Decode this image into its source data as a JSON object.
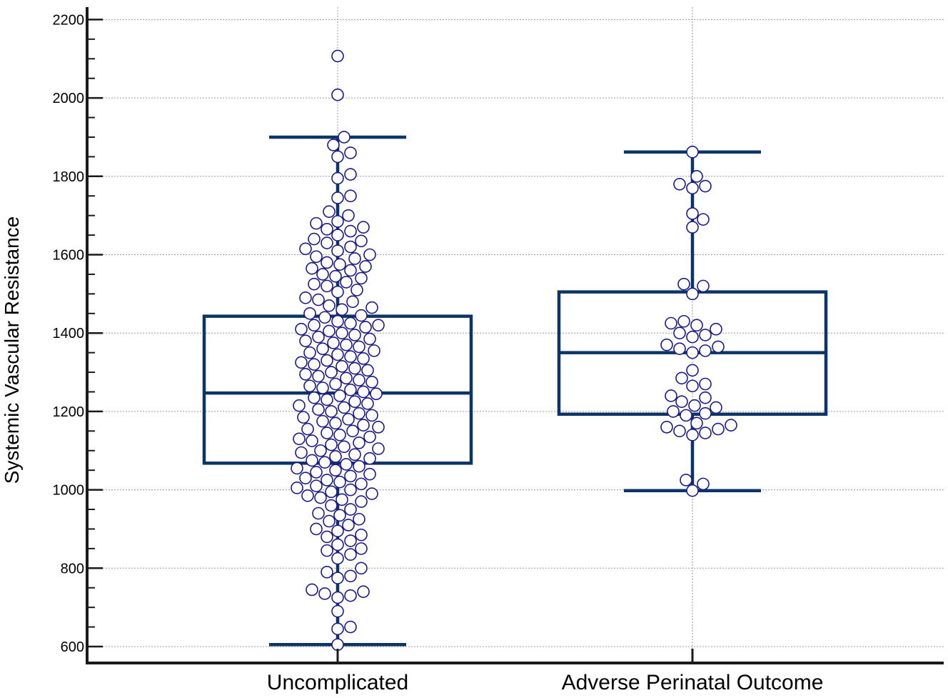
{
  "chart_data": {
    "type": "boxplot",
    "title": "",
    "xlabel": "",
    "ylabel": "Systemic Vascular Resistance",
    "ylim": [
      590,
      2230
    ],
    "yticks": [
      600,
      800,
      1000,
      1200,
      1400,
      1600,
      1800,
      2000,
      2200
    ],
    "grid": true,
    "colors": {
      "box": "#0d3466",
      "point_stroke": "#1a1a8c",
      "point_fill": "#ffffff",
      "grid": "#9a9a9a",
      "axis": "#1a1a1a"
    },
    "categories": [
      "Uncomplicated",
      "Adverse Perinatal Outcome"
    ],
    "boxes": [
      {
        "name": "Uncomplicated",
        "whisker_low": 605,
        "q1": 1068,
        "median": 1247,
        "q3": 1443,
        "whisker_high": 1900,
        "points": [
          2107,
          2008,
          1900,
          1880,
          1860,
          1850,
          1805,
          1795,
          1750,
          1745,
          1710,
          1700,
          1685,
          1680,
          1670,
          1665,
          1660,
          1650,
          1640,
          1635,
          1630,
          1620,
          1615,
          1610,
          1600,
          1595,
          1590,
          1580,
          1575,
          1570,
          1565,
          1560,
          1550,
          1545,
          1540,
          1530,
          1525,
          1520,
          1510,
          1505,
          1490,
          1485,
          1480,
          1470,
          1465,
          1460,
          1450,
          1445,
          1440,
          1430,
          1425,
          1420,
          1420,
          1415,
          1410,
          1405,
          1400,
          1395,
          1390,
          1385,
          1380,
          1375,
          1370,
          1365,
          1360,
          1355,
          1350,
          1345,
          1340,
          1335,
          1330,
          1325,
          1320,
          1315,
          1310,
          1305,
          1300,
          1295,
          1290,
          1285,
          1280,
          1275,
          1270,
          1265,
          1260,
          1255,
          1250,
          1245,
          1240,
          1235,
          1230,
          1225,
          1220,
          1215,
          1210,
          1205,
          1200,
          1195,
          1190,
          1185,
          1180,
          1175,
          1170,
          1165,
          1160,
          1155,
          1150,
          1145,
          1140,
          1135,
          1130,
          1125,
          1120,
          1115,
          1110,
          1105,
          1100,
          1095,
          1090,
          1085,
          1080,
          1075,
          1070,
          1065,
          1060,
          1055,
          1050,
          1045,
          1040,
          1035,
          1030,
          1025,
          1020,
          1015,
          1010,
          1005,
          1000,
          995,
          990,
          985,
          980,
          975,
          970,
          960,
          950,
          940,
          935,
          925,
          920,
          910,
          900,
          895,
          885,
          880,
          870,
          860,
          850,
          845,
          835,
          825,
          800,
          790,
          780,
          775,
          745,
          740,
          735,
          730,
          725,
          690,
          650,
          645,
          605
        ]
      },
      {
        "name": "Adverse Perinatal Outcome",
        "whisker_low": 998,
        "q1": 1193,
        "median": 1350,
        "q3": 1505,
        "whisker_high": 1862,
        "points": [
          1862,
          1800,
          1780,
          1775,
          1770,
          1705,
          1690,
          1670,
          1525,
          1520,
          1500,
          1430,
          1425,
          1420,
          1410,
          1400,
          1395,
          1390,
          1370,
          1365,
          1360,
          1355,
          1350,
          1305,
          1285,
          1270,
          1265,
          1240,
          1235,
          1225,
          1215,
          1210,
          1200,
          1195,
          1190,
          1170,
          1165,
          1160,
          1155,
          1150,
          1145,
          1140,
          1025,
          1015,
          998
        ]
      }
    ]
  }
}
